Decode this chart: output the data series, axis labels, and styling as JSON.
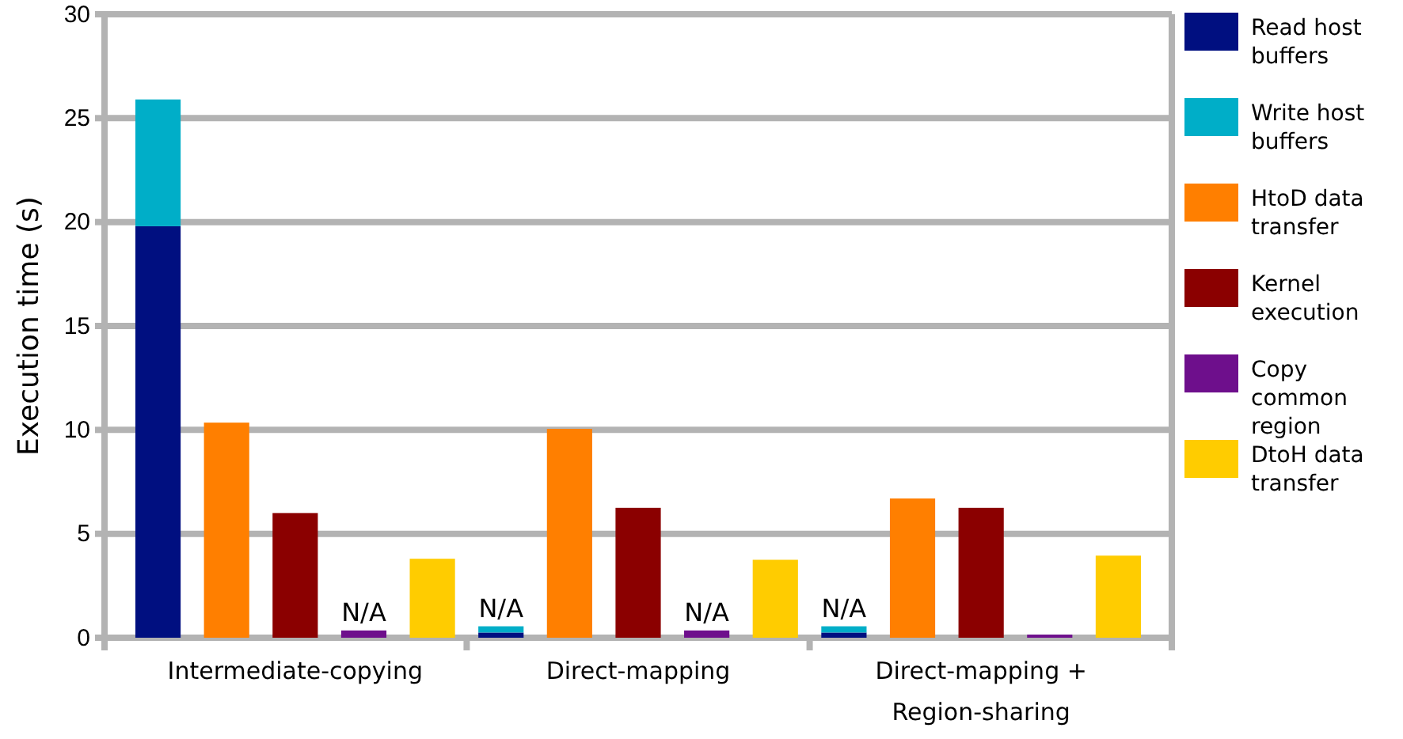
{
  "chart_data": {
    "type": "bar",
    "stacked": true,
    "ylabel": "Execution time (s)",
    "categories": [
      null,
      null,
      "Intermediate-copying",
      null,
      null,
      null,
      null,
      "Direct-mapping",
      null,
      null,
      null,
      null,
      "Direct-mapping +\nRegion-sharing",
      null,
      null
    ],
    "ylim": [
      0,
      30
    ],
    "yticks": [
      0,
      5,
      10,
      15,
      20,
      25,
      30
    ],
    "grid": "y",
    "legend": "right",
    "series": [
      {
        "name": "Read host buffers",
        "color": "#000f80",
        "values": [
          19.8,
          null,
          null,
          null,
          null,
          0.25,
          null,
          null,
          null,
          null,
          0.25,
          null,
          null,
          null,
          null
        ]
      },
      {
        "name": "Write host buffers",
        "color": "#00aec8",
        "values": [
          6.1,
          null,
          null,
          null,
          null,
          0.3,
          null,
          null,
          null,
          null,
          0.3,
          null,
          null,
          null,
          null
        ],
        "value_labels": [
          null,
          null,
          null,
          null,
          null,
          "N/A",
          null,
          null,
          null,
          null,
          "N/A",
          null,
          null,
          null,
          null
        ]
      },
      {
        "name": "HtoD data transfer",
        "color": "#ff7f00",
        "values": [
          null,
          10.35,
          null,
          null,
          null,
          null,
          10.05,
          null,
          null,
          null,
          null,
          6.7,
          null,
          null,
          null
        ]
      },
      {
        "name": "Kernel execution",
        "color": "#8b0000",
        "values": [
          null,
          null,
          6.0,
          null,
          null,
          null,
          null,
          6.25,
          null,
          null,
          null,
          null,
          6.25,
          null,
          null
        ]
      },
      {
        "name": "Copy common region",
        "color": "#6e0f8c",
        "values": [
          null,
          null,
          null,
          0.35,
          null,
          null,
          null,
          null,
          0.35,
          null,
          null,
          null,
          null,
          0.15,
          null
        ],
        "value_labels": [
          null,
          null,
          null,
          "N/A",
          null,
          null,
          null,
          null,
          "N/A",
          null,
          null,
          null,
          null,
          null,
          null
        ]
      },
      {
        "name": "DtoH data transfer",
        "color": "#ffcc00",
        "values": [
          null,
          null,
          null,
          null,
          3.8,
          null,
          null,
          null,
          null,
          3.75,
          null,
          null,
          null,
          null,
          3.95
        ]
      }
    ]
  }
}
